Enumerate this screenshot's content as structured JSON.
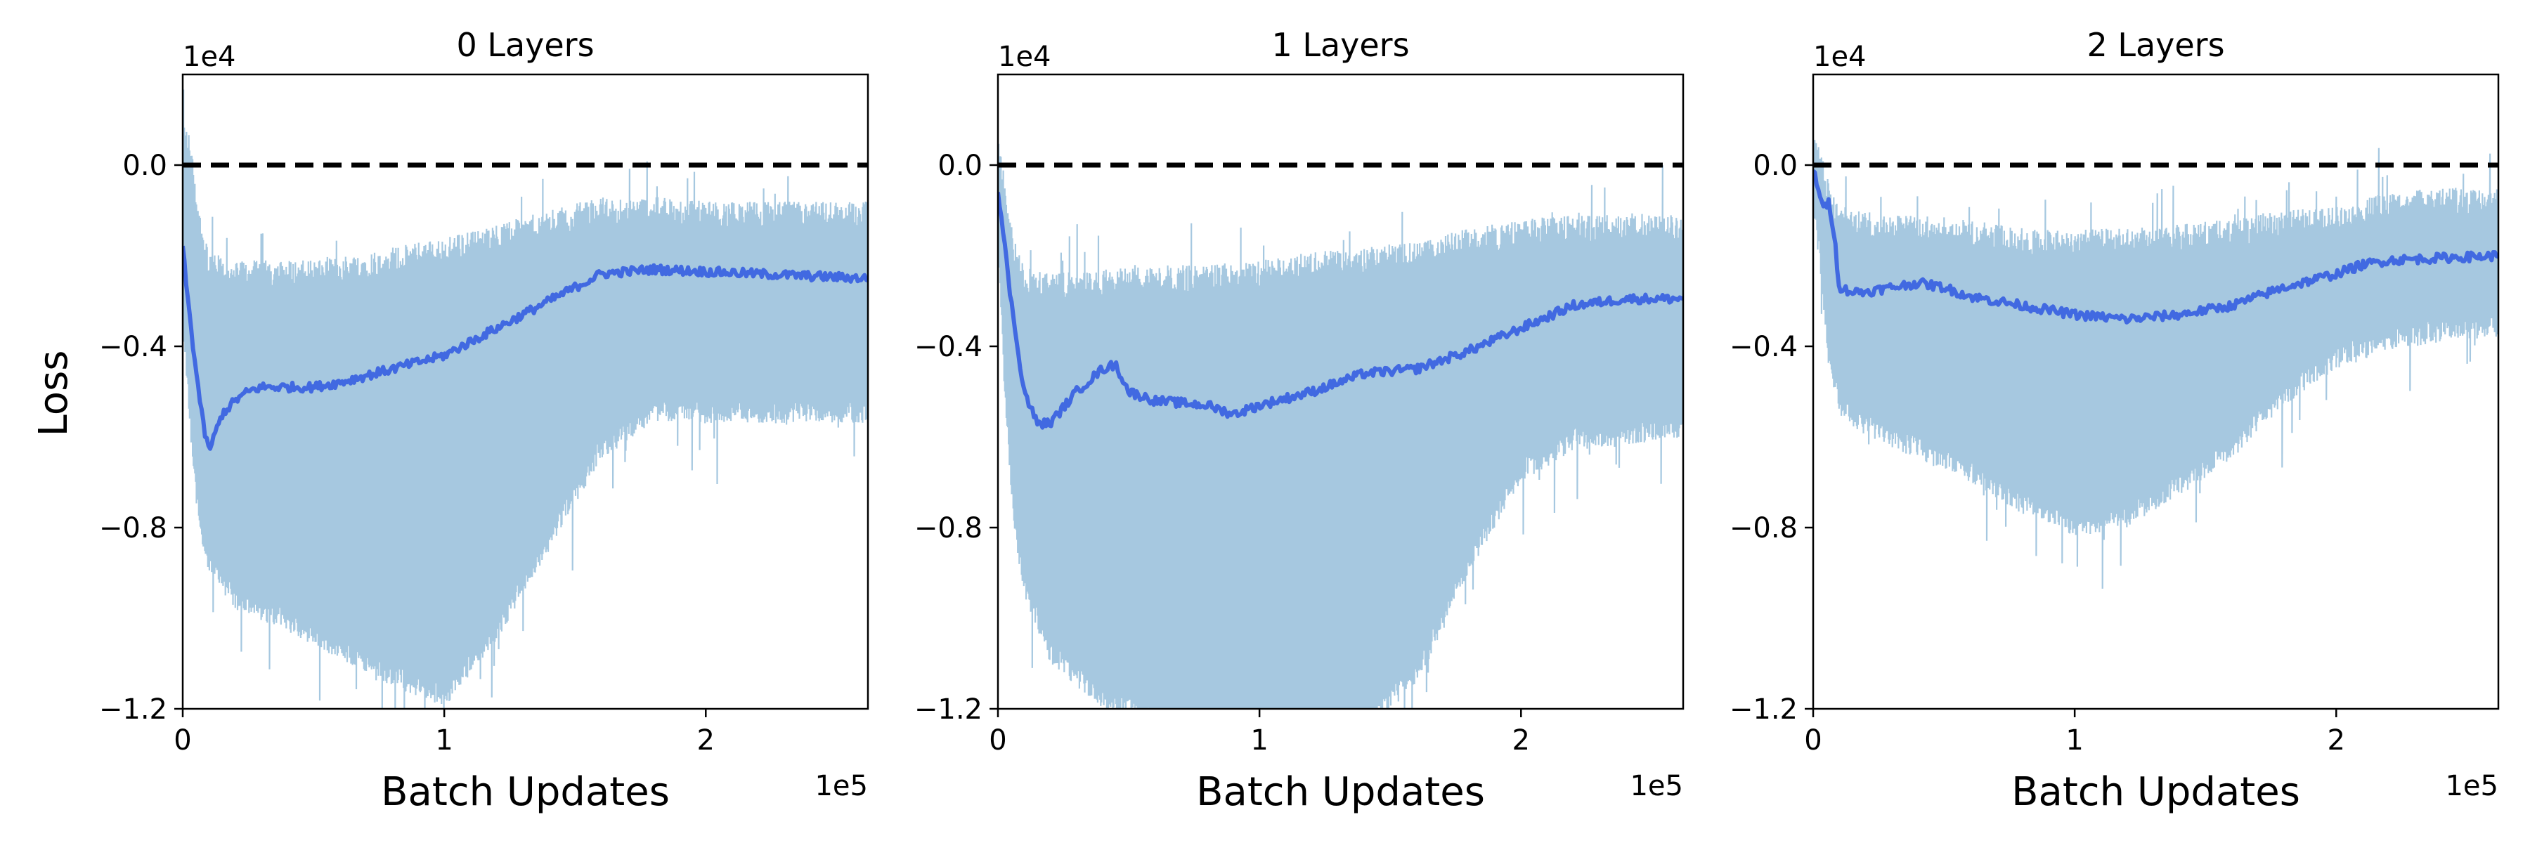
{
  "figure": {
    "ylabel": "Loss",
    "colors": {
      "raw": "#a6c8e0",
      "smooth": "#4169e1",
      "zero_line": "#000000",
      "axes": "#000000"
    }
  },
  "chart_data": [
    {
      "type": "line",
      "title": "0 Layers",
      "xlabel": "Batch Updates",
      "ylabel": "Loss",
      "x_offset_label": "1e5",
      "y_offset_label": "1e4",
      "xlim": [
        0,
        2.62
      ],
      "ylim": [
        -1.2,
        0.2
      ],
      "xticks": [
        0,
        1,
        2
      ],
      "xtick_labels": [
        "0",
        "1",
        "2"
      ],
      "yticks": [
        0.0,
        -0.4,
        -0.8,
        -1.2
      ],
      "ytick_labels": [
        "0.0",
        "−0.4",
        "−0.8",
        "−1.2"
      ],
      "reference_line": {
        "y": 0.0,
        "style": "dashed"
      },
      "series": [
        {
          "role": "smoothed",
          "x": [
            0.0,
            0.02,
            0.05,
            0.08,
            0.1,
            0.12,
            0.15,
            0.2,
            0.25,
            0.3,
            0.4,
            0.5,
            0.6,
            0.8,
            1.0,
            1.2,
            1.4,
            1.6,
            1.7,
            1.8,
            2.0,
            2.2,
            2.4,
            2.62
          ],
          "y": [
            -0.18,
            -0.3,
            -0.45,
            -0.58,
            -0.63,
            -0.6,
            -0.55,
            -0.52,
            -0.5,
            -0.49,
            -0.49,
            -0.49,
            -0.48,
            -0.45,
            -0.42,
            -0.36,
            -0.3,
            -0.24,
            -0.235,
            -0.23,
            -0.235,
            -0.24,
            -0.245,
            -0.25
          ]
        },
        {
          "role": "raw_envelope",
          "x": [
            0.0,
            0.03,
            0.06,
            0.1,
            0.2,
            0.4,
            0.6,
            0.8,
            1.0,
            1.2,
            1.4,
            1.6,
            1.8,
            2.0,
            2.2,
            2.4,
            2.62
          ],
          "upper": [
            0.05,
            0.0,
            -0.15,
            -0.25,
            -0.27,
            -0.27,
            -0.26,
            -0.24,
            -0.22,
            -0.19,
            -0.16,
            -0.13,
            -0.13,
            -0.14,
            -0.14,
            -0.14,
            -0.14
          ],
          "lower": [
            -0.3,
            -0.55,
            -0.75,
            -0.85,
            -0.93,
            -0.98,
            -1.04,
            -1.1,
            -1.15,
            -1.0,
            -0.8,
            -0.6,
            -0.52,
            -0.52,
            -0.52,
            -0.52,
            -0.52
          ]
        }
      ]
    },
    {
      "type": "line",
      "title": "1 Layers",
      "xlabel": "Batch Updates",
      "ylabel": "",
      "x_offset_label": "1e5",
      "y_offset_label": "1e4",
      "xlim": [
        0,
        2.62
      ],
      "ylim": [
        -1.2,
        0.2
      ],
      "xticks": [
        0,
        1,
        2
      ],
      "xtick_labels": [
        "0",
        "1",
        "2"
      ],
      "yticks": [
        0.0,
        -0.4,
        -0.8,
        -1.2
      ],
      "ytick_labels": [
        "0.0",
        "−0.4",
        "−0.8",
        "−1.2"
      ],
      "reference_line": {
        "y": 0.0,
        "style": "dashed"
      },
      "series": [
        {
          "role": "smoothed",
          "x": [
            0.0,
            0.02,
            0.05,
            0.08,
            0.1,
            0.15,
            0.2,
            0.3,
            0.4,
            0.45,
            0.5,
            0.6,
            0.8,
            0.9,
            1.0,
            1.2,
            1.4,
            1.6,
            1.8,
            2.0,
            2.2,
            2.4,
            2.62
          ],
          "y": [
            -0.05,
            -0.15,
            -0.3,
            -0.42,
            -0.5,
            -0.57,
            -0.57,
            -0.5,
            -0.45,
            -0.44,
            -0.5,
            -0.52,
            -0.53,
            -0.55,
            -0.53,
            -0.5,
            -0.46,
            -0.45,
            -0.41,
            -0.36,
            -0.31,
            -0.295,
            -0.295
          ]
        },
        {
          "role": "raw_envelope",
          "x": [
            0.0,
            0.03,
            0.06,
            0.1,
            0.2,
            0.4,
            0.6,
            0.8,
            1.0,
            1.2,
            1.4,
            1.6,
            1.8,
            2.0,
            2.2,
            2.4,
            2.62
          ],
          "upper": [
            0.0,
            -0.1,
            -0.22,
            -0.28,
            -0.3,
            -0.29,
            -0.28,
            -0.28,
            -0.27,
            -0.25,
            -0.24,
            -0.23,
            -0.2,
            -0.18,
            -0.17,
            -0.17,
            -0.17
          ],
          "lower": [
            -0.15,
            -0.5,
            -0.75,
            -0.9,
            -1.05,
            -1.15,
            -1.2,
            -1.2,
            -1.2,
            -1.2,
            -1.2,
            -1.1,
            -0.85,
            -0.65,
            -0.58,
            -0.57,
            -0.55
          ]
        }
      ]
    },
    {
      "type": "line",
      "title": "2 Layers",
      "xlabel": "Batch Updates",
      "ylabel": "",
      "x_offset_label": "1e5",
      "y_offset_label": "1e4",
      "xlim": [
        0,
        2.62
      ],
      "ylim": [
        -1.2,
        0.2
      ],
      "xticks": [
        0,
        1,
        2
      ],
      "xtick_labels": [
        "0",
        "1",
        "2"
      ],
      "yticks": [
        0.0,
        -0.4,
        -0.8,
        -1.2
      ],
      "ytick_labels": [
        "0.0",
        "−0.4",
        "−0.8",
        "−1.2"
      ],
      "reference_line": {
        "y": 0.0,
        "style": "dashed"
      },
      "series": [
        {
          "role": "smoothed",
          "x": [
            0.0,
            0.02,
            0.04,
            0.06,
            0.08,
            0.1,
            0.15,
            0.2,
            0.3,
            0.4,
            0.5,
            0.6,
            0.8,
            1.0,
            1.2,
            1.4,
            1.6,
            1.8,
            2.0,
            2.1,
            2.2,
            2.4,
            2.62
          ],
          "y": [
            -0.01,
            -0.05,
            -0.1,
            -0.08,
            -0.15,
            -0.27,
            -0.28,
            -0.28,
            -0.27,
            -0.26,
            -0.27,
            -0.29,
            -0.31,
            -0.33,
            -0.34,
            -0.33,
            -0.31,
            -0.27,
            -0.24,
            -0.22,
            -0.21,
            -0.205,
            -0.2
          ]
        },
        {
          "role": "raw_envelope",
          "x": [
            0.0,
            0.03,
            0.06,
            0.1,
            0.2,
            0.4,
            0.6,
            0.8,
            1.0,
            1.2,
            1.4,
            1.6,
            1.8,
            2.0,
            2.2,
            2.4,
            2.62
          ],
          "upper": [
            0.0,
            -0.02,
            -0.1,
            -0.15,
            -0.16,
            -0.17,
            -0.18,
            -0.2,
            -0.2,
            -0.2,
            -0.19,
            -0.18,
            -0.16,
            -0.15,
            -0.12,
            -0.11,
            -0.11
          ],
          "lower": [
            -0.05,
            -0.2,
            -0.4,
            -0.5,
            -0.55,
            -0.6,
            -0.65,
            -0.72,
            -0.77,
            -0.75,
            -0.68,
            -0.6,
            -0.48,
            -0.4,
            -0.36,
            -0.34,
            -0.33
          ]
        }
      ]
    }
  ]
}
